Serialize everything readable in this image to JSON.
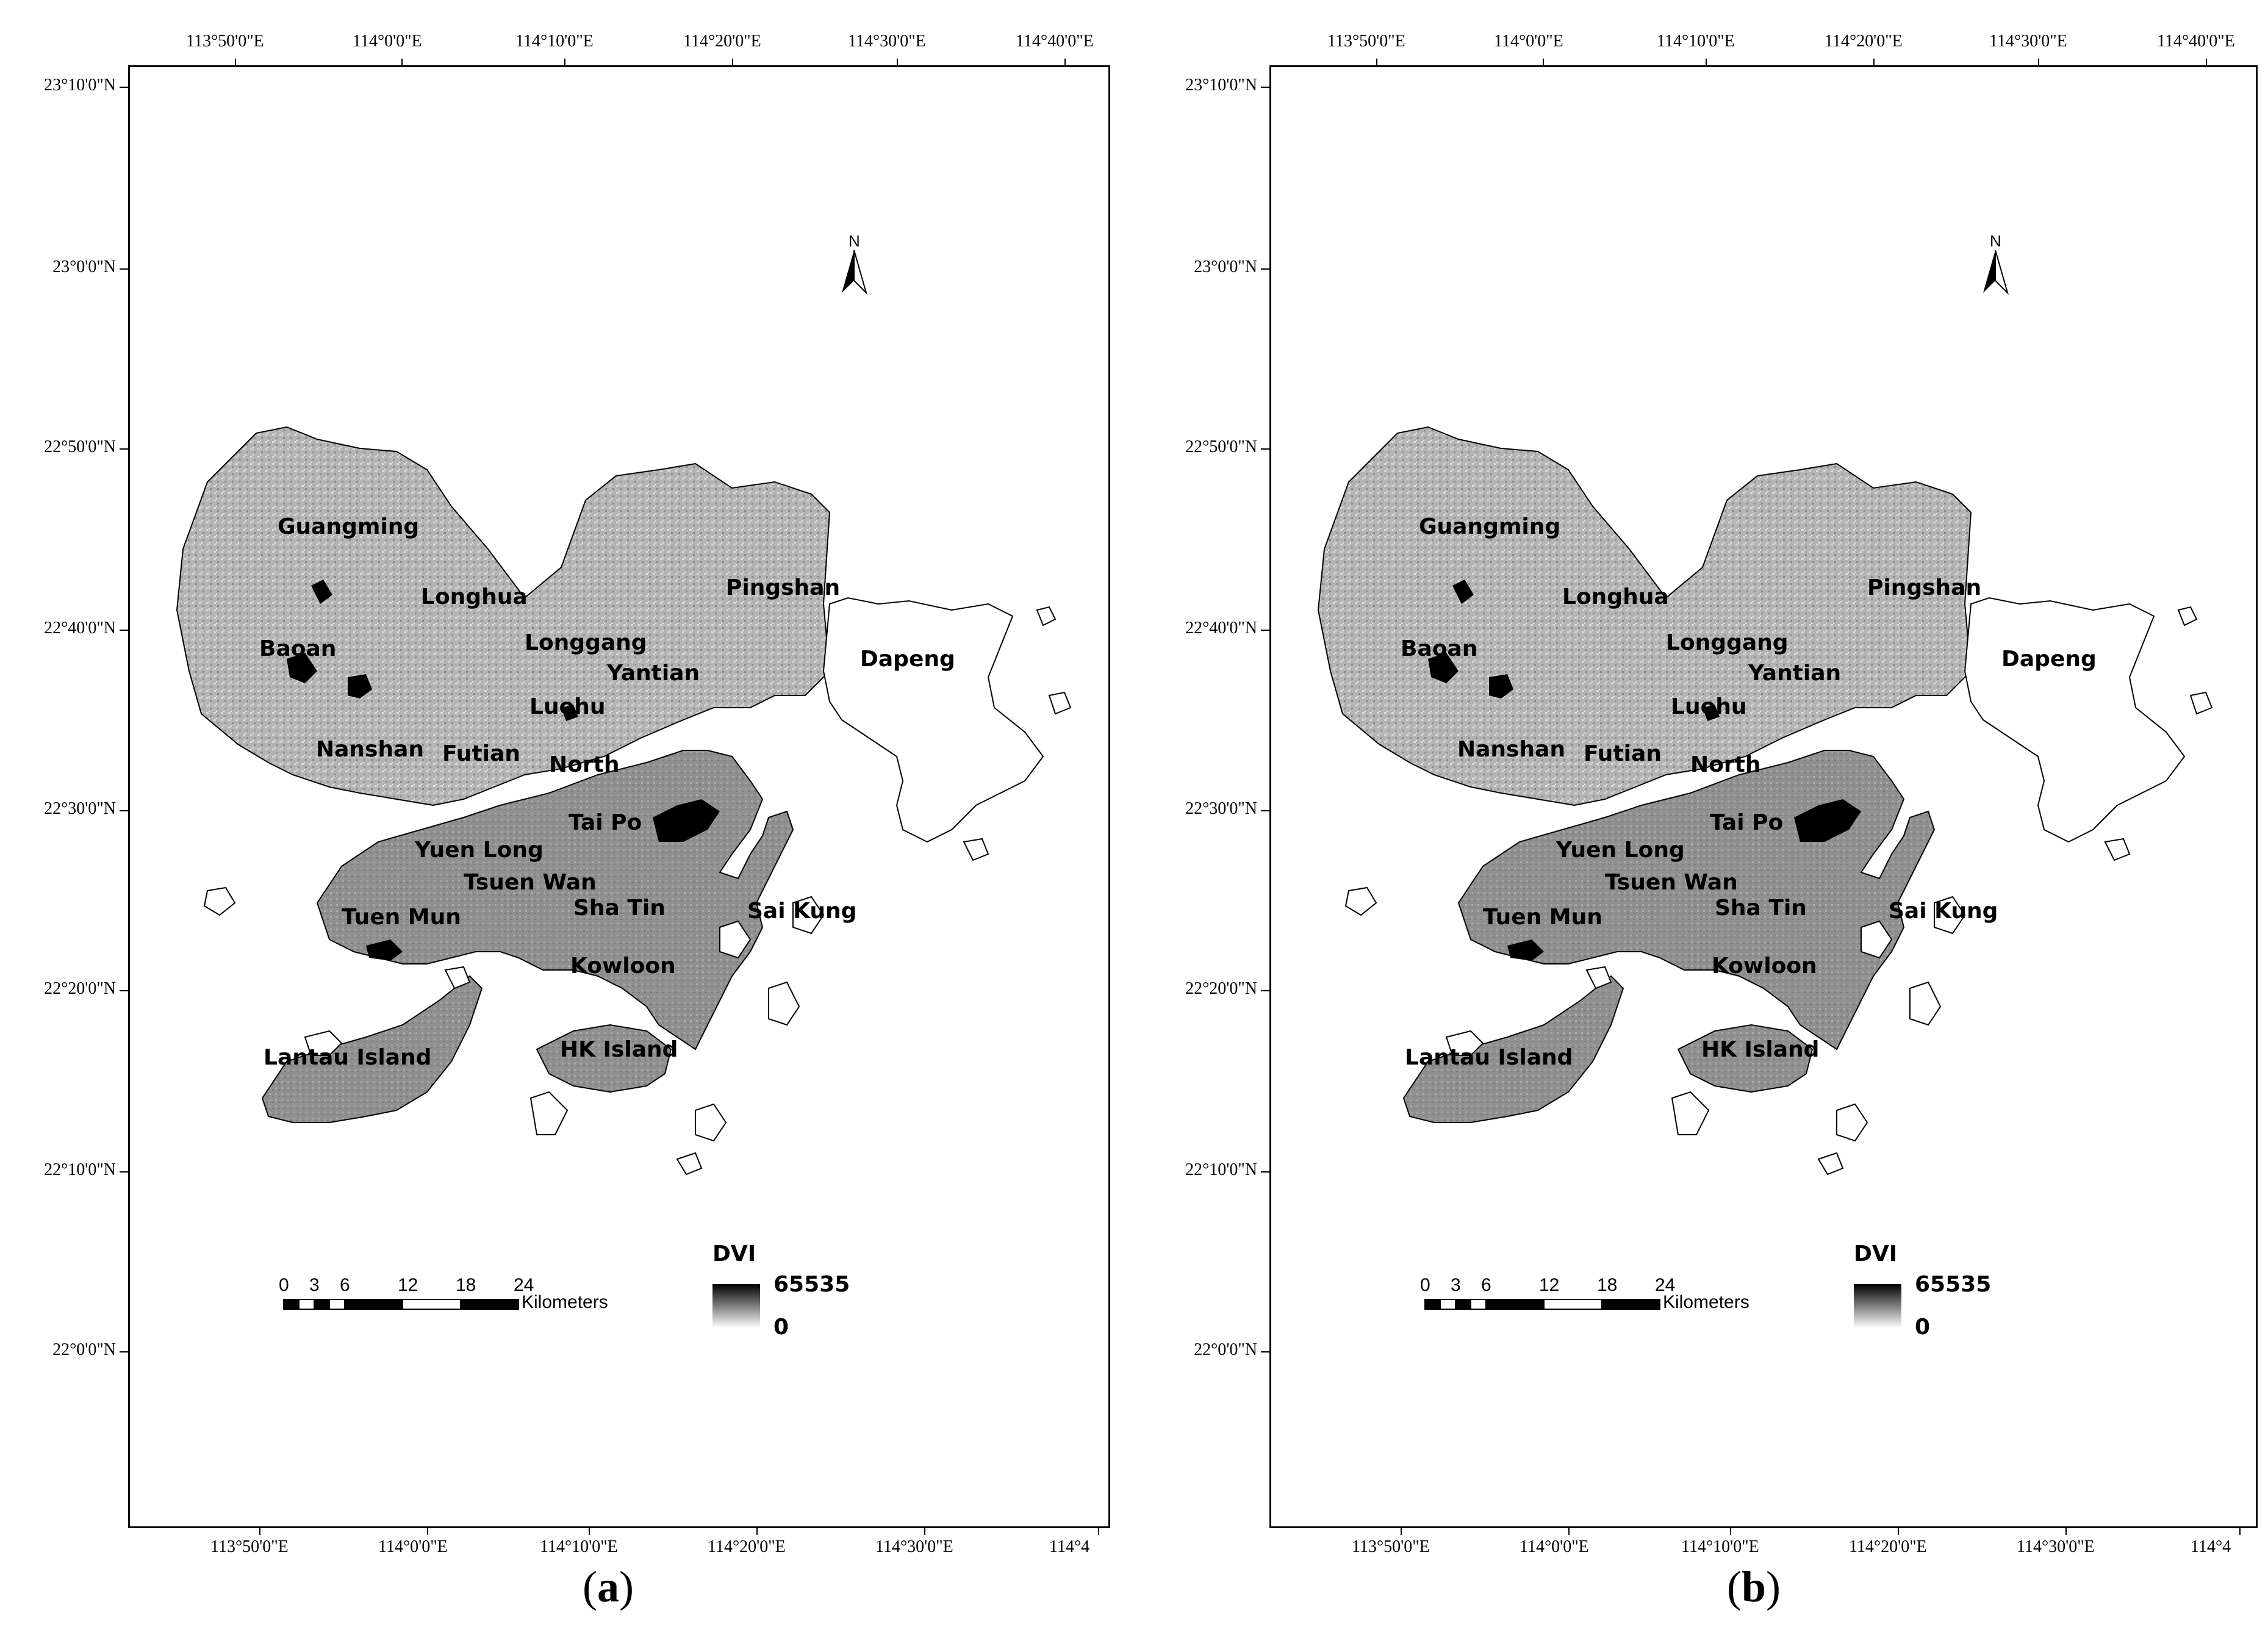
{
  "panels": [
    {
      "id": "a",
      "caption_open": "(",
      "caption_letter": "a",
      "caption_close": ")"
    },
    {
      "id": "b",
      "caption_open": "(",
      "caption_letter": "b",
      "caption_close": ")"
    }
  ],
  "axes": {
    "top_ticks": [
      "113°50'0\"E",
      "114°0'0\"E",
      "114°10'0\"E",
      "114°20'0\"E",
      "114°30'0\"E",
      "114°40'0\"E"
    ],
    "bottom_ticks": [
      "113°50'0\"E",
      "114°0'0\"E",
      "114°10'0\"E",
      "114°20'0\"E",
      "114°30'0\"E",
      "114°4"
    ],
    "left_ticks": [
      "23°10'0\"N",
      "23°0'0\"N",
      "22°50'0\"N",
      "22°40'0\"N",
      "22°30'0\"N",
      "22°20'0\"N",
      "22°10'0\"N",
      "22°0'0\"N"
    ]
  },
  "place_labels": [
    "Guangming",
    "Longhua",
    "Pingshan",
    "Baoan",
    "Longgang",
    "Yantian",
    "Dapeng",
    "Luohu",
    "Nanshan",
    "Futian",
    "North",
    "Tai Po",
    "Yuen Long",
    "Tsuen Wan",
    "Sha Tin",
    "Sai Kung",
    "Tuen Mun",
    "Kowloon",
    "Lantau Island",
    "HK Island"
  ],
  "north_arrow": {
    "label": "N"
  },
  "scale_bar": {
    "ticks": [
      "0",
      "3",
      "6",
      "12",
      "18",
      "24"
    ],
    "unit": "Kilometers"
  },
  "legend": {
    "title": "DVI",
    "max": "65535",
    "min": "0"
  },
  "colors": {
    "land_fill": "#a8a8a8",
    "outline": "#000000",
    "dark_water": "#000000"
  }
}
